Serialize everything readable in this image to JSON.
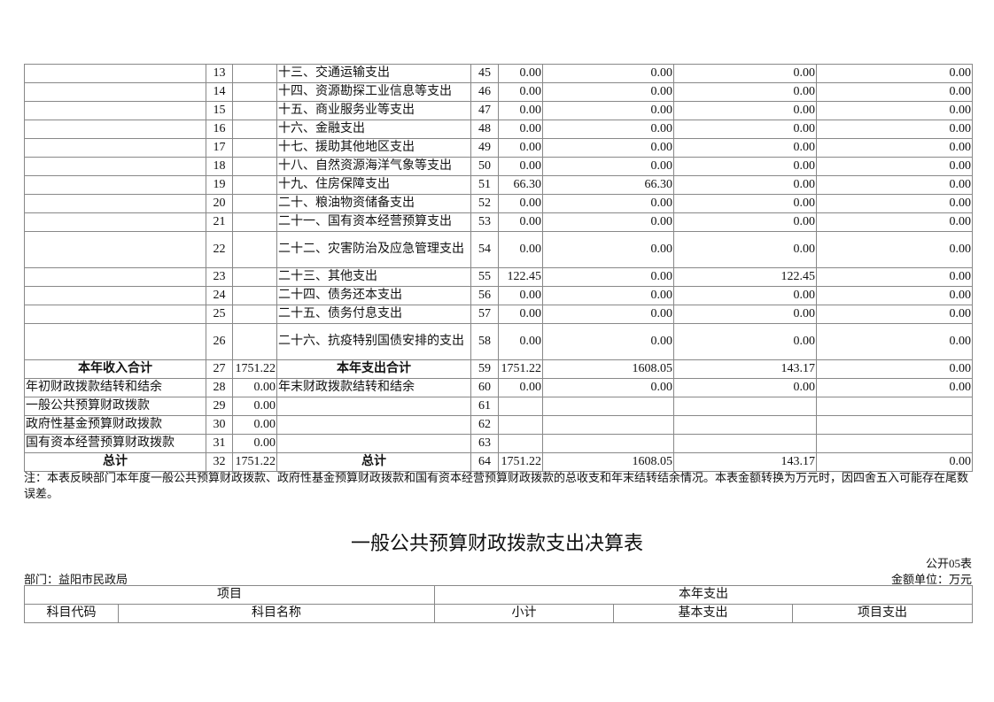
{
  "table1": {
    "rows": [
      {
        "n1": "13",
        "a": "十三、交通运输支出",
        "n2": "45",
        "v": [
          "0.00",
          "0.00",
          "0.00",
          "0.00"
        ]
      },
      {
        "n1": "14",
        "a": "十四、资源勘探工业信息等支出",
        "n2": "46",
        "v": [
          "0.00",
          "0.00",
          "0.00",
          "0.00"
        ]
      },
      {
        "n1": "15",
        "a": "十五、商业服务业等支出",
        "n2": "47",
        "v": [
          "0.00",
          "0.00",
          "0.00",
          "0.00"
        ]
      },
      {
        "n1": "16",
        "a": "十六、金融支出",
        "n2": "48",
        "v": [
          "0.00",
          "0.00",
          "0.00",
          "0.00"
        ]
      },
      {
        "n1": "17",
        "a": "十七、援助其他地区支出",
        "n2": "49",
        "v": [
          "0.00",
          "0.00",
          "0.00",
          "0.00"
        ]
      },
      {
        "n1": "18",
        "a": "十八、自然资源海洋气象等支出",
        "n2": "50",
        "v": [
          "0.00",
          "0.00",
          "0.00",
          "0.00"
        ]
      },
      {
        "n1": "19",
        "a": "十九、住房保障支出",
        "n2": "51",
        "v": [
          "66.30",
          "66.30",
          "0.00",
          "0.00"
        ]
      },
      {
        "n1": "20",
        "a": "二十、粮油物资储备支出",
        "n2": "52",
        "v": [
          "0.00",
          "0.00",
          "0.00",
          "0.00"
        ]
      },
      {
        "n1": "21",
        "a": "二十一、国有资本经营预算支出",
        "n2": "53",
        "v": [
          "0.00",
          "0.00",
          "0.00",
          "0.00"
        ]
      },
      {
        "n1": "22",
        "a": "二十二、灾害防治及应急管理支出",
        "n2": "54",
        "v": [
          "0.00",
          "0.00",
          "0.00",
          "0.00"
        ],
        "tall": true
      },
      {
        "n1": "23",
        "a": "二十三、其他支出",
        "n2": "55",
        "v": [
          "122.45",
          "0.00",
          "122.45",
          "0.00"
        ]
      },
      {
        "n1": "24",
        "a": "二十四、债务还本支出",
        "n2": "56",
        "v": [
          "0.00",
          "0.00",
          "0.00",
          "0.00"
        ]
      },
      {
        "n1": "25",
        "a": "二十五、债务付息支出",
        "n2": "57",
        "v": [
          "0.00",
          "0.00",
          "0.00",
          "0.00"
        ]
      },
      {
        "n1": "26",
        "a": "二十六、抗疫特别国债安排的支出",
        "n2": "58",
        "v": [
          "0.00",
          "0.00",
          "0.00",
          "0.00"
        ],
        "tall": true
      }
    ],
    "bottom": [
      {
        "l": "本年收入合计",
        "n1": "27",
        "lv": "1751.22",
        "a": "本年支出合计",
        "n2": "59",
        "v": [
          "1751.22",
          "1608.05",
          "143.17",
          "0.00"
        ],
        "bold": true
      },
      {
        "l": "年初财政拨款结转和结余",
        "n1": "28",
        "lv": "0.00",
        "a": "年末财政拨款结转和结余",
        "n2": "60",
        "v": [
          "0.00",
          "0.00",
          "0.00",
          "0.00"
        ]
      },
      {
        "l": "一般公共预算财政拨款",
        "n1": "29",
        "lv": "0.00",
        "a": "",
        "n2": "61",
        "v": [
          "",
          "",
          "",
          ""
        ]
      },
      {
        "l": "政府性基金预算财政拨款",
        "n1": "30",
        "lv": "0.00",
        "a": "",
        "n2": "62",
        "v": [
          "",
          "",
          "",
          ""
        ]
      },
      {
        "l": "国有资本经营预算财政拨款",
        "n1": "31",
        "lv": "0.00",
        "a": "",
        "n2": "63",
        "v": [
          "",
          "",
          "",
          ""
        ]
      },
      {
        "l": "总计",
        "n1": "32",
        "lv": "1751.22",
        "a": "总计",
        "n2": "64",
        "v": [
          "1751.22",
          "1608.05",
          "143.17",
          "0.00"
        ],
        "bold": true
      }
    ]
  },
  "note": "注：本表反映部门本年度一般公共预算财政拨款、政府性基金预算财政拨款和国有资本经营预算财政拨款的总收支和年末结转结余情况。本表金额转换为万元时，因四舍五入可能存在尾数误差。",
  "table2": {
    "title": "一般公共预算财政拨款支出决算表",
    "code": "公开05表",
    "dept": "部门：益阳市民政局",
    "unit": "金额单位：万元",
    "h1": [
      "项目",
      "本年支出"
    ],
    "h2": [
      "科目代码",
      "科目名称",
      "小计",
      "基本支出",
      "项目支出"
    ]
  }
}
